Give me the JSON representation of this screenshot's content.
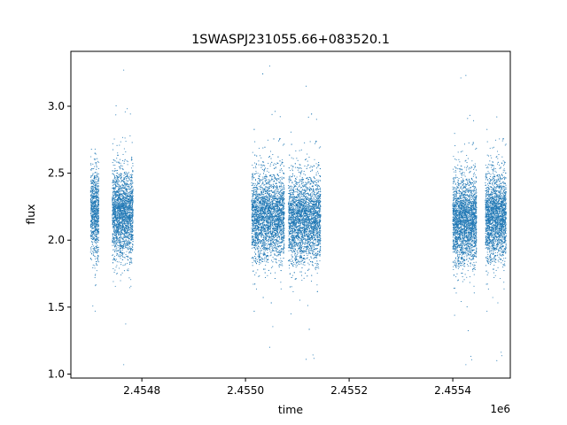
{
  "chart_data": {
    "type": "scatter",
    "title": "1SWASPJ231055.66+083520.1",
    "xlabel": "time",
    "ylabel": "flux",
    "x_offset_label": "1e6",
    "xlim": [
      2454663,
      2455511
    ],
    "ylim": [
      0.97,
      3.41
    ],
    "x_ticks": [
      2454800,
      2455000,
      2455200,
      2455400
    ],
    "x_tick_labels": [
      "2.4548",
      "2.4550",
      "2.4552",
      "2.4554"
    ],
    "y_ticks": [
      1.0,
      1.5,
      2.0,
      2.5,
      3.0
    ],
    "y_tick_labels": [
      "1.0",
      "1.5",
      "2.0",
      "2.5",
      "3.0"
    ],
    "grid": false,
    "marker_color": "#1f77b4",
    "observing_seasons": [
      {
        "x_start": 2454701,
        "x_end": 2454717,
        "median_flux": 2.2,
        "min_flux": 1.47,
        "max_flux": 2.68
      },
      {
        "x_start": 2454743,
        "x_end": 2454783,
        "median_flux": 2.2,
        "min_flux": 1.07,
        "max_flux": 3.27
      },
      {
        "x_start": 2455012,
        "x_end": 2455075,
        "median_flux": 2.18,
        "min_flux": 1.2,
        "max_flux": 3.3
      },
      {
        "x_start": 2455083,
        "x_end": 2455145,
        "median_flux": 2.16,
        "min_flux": 1.11,
        "max_flux": 3.15
      },
      {
        "x_start": 2455400,
        "x_end": 2455446,
        "median_flux": 2.15,
        "min_flux": 1.07,
        "max_flux": 3.23
      },
      {
        "x_start": 2455463,
        "x_end": 2455503,
        "median_flux": 2.18,
        "min_flux": 1.1,
        "max_flux": 2.92
      }
    ]
  }
}
